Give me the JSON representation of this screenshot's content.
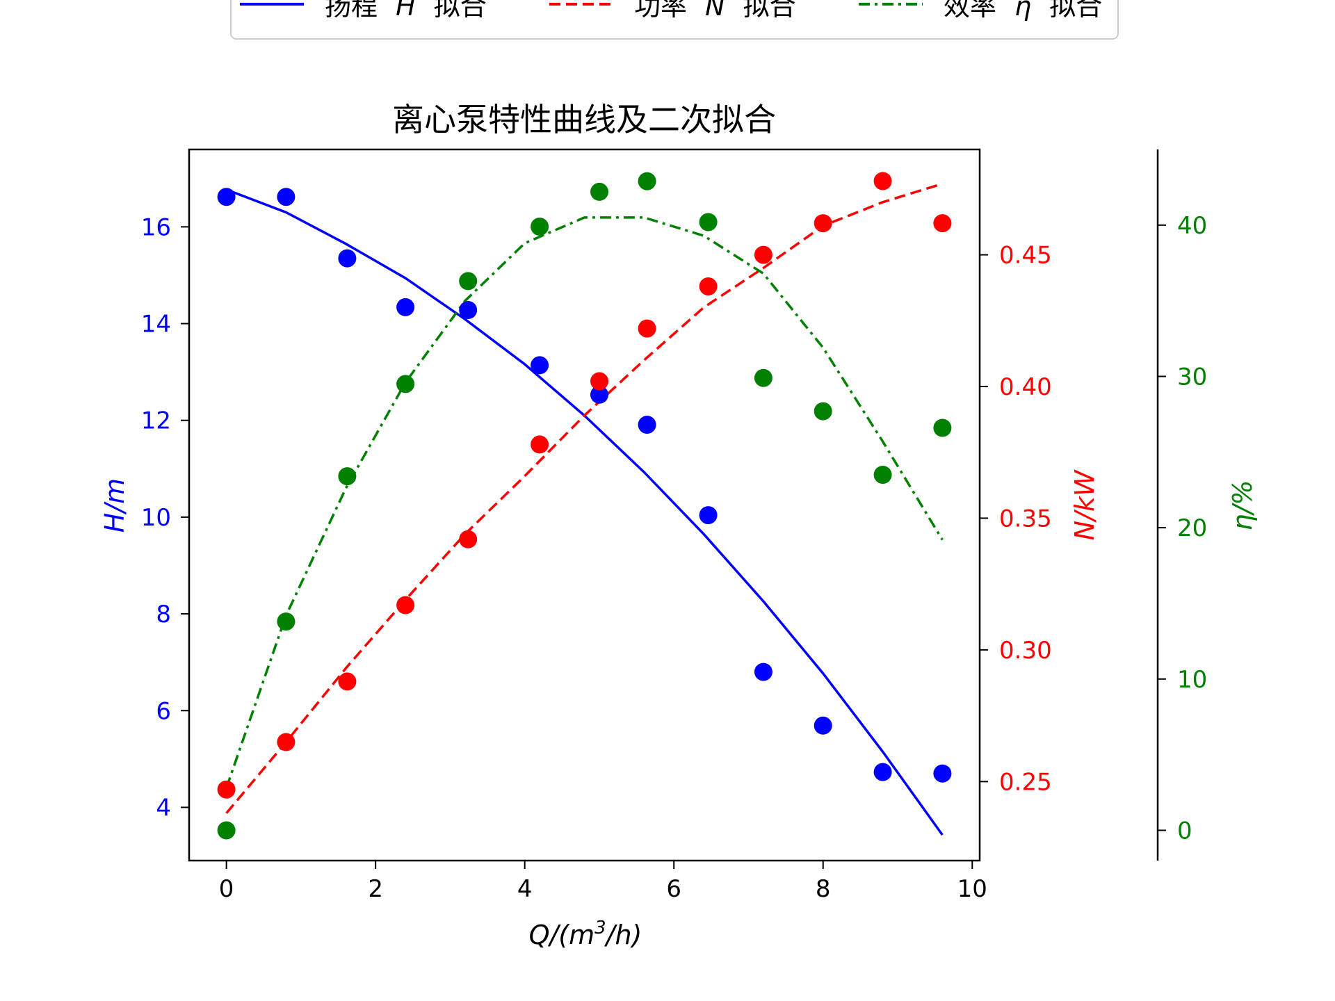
{
  "chart_data": {
    "type": "line",
    "title": "离心泵特性曲线及二次拟合",
    "xlabel": "Q/(m³/h)",
    "xlim": [
      -0.5,
      10.1
    ],
    "xticks": [
      0,
      2,
      4,
      6,
      8,
      10
    ],
    "axes": {
      "H": {
        "label": "H/m",
        "color": "#0000ff",
        "ylim": [
          2.9,
          17.6
        ],
        "ticks": [
          4,
          6,
          8,
          10,
          12,
          14,
          16
        ]
      },
      "N": {
        "label": "N/kW",
        "color": "#ff0000",
        "ylim": [
          0.22,
          0.49
        ],
        "ticks": [
          0.25,
          0.3,
          0.35,
          0.4,
          0.45
        ],
        "tick_labels": [
          "0.25",
          "0.30",
          "0.35",
          "0.40",
          "0.45"
        ]
      },
      "eta": {
        "label": "η/%",
        "color": "#008000",
        "ylim": [
          -2,
          45
        ],
        "ticks": [
          0,
          10,
          20,
          30,
          40
        ]
      }
    },
    "x": [
      0.0,
      0.8,
      1.62,
      2.4,
      3.24,
      4.2,
      5.0,
      5.64,
      6.46,
      7.2,
      8.0,
      8.8,
      9.6
    ],
    "series": [
      {
        "key": "H",
        "name": "扬程 H 拟合",
        "name_parts": [
          "扬程",
          "H",
          "拟合"
        ],
        "axis": "H",
        "color": "#0000ff",
        "dash": "solid",
        "points": [
          16.62,
          16.62,
          15.35,
          14.34,
          14.28,
          13.14,
          12.53,
          11.91,
          10.04,
          6.8,
          5.69,
          4.73,
          4.7
        ],
        "fit_x": [
          0.0,
          0.8,
          1.6,
          2.4,
          3.2,
          4.0,
          4.8,
          5.6,
          6.4,
          7.2,
          8.0,
          8.8,
          9.6
        ],
        "fit": [
          16.77,
          16.3,
          15.65,
          14.94,
          14.09,
          13.16,
          12.1,
          10.93,
          9.65,
          8.26,
          6.77,
          5.15,
          3.43
        ]
      },
      {
        "key": "N",
        "name": "功率 N 拟合",
        "name_parts": [
          "功率",
          "N",
          "拟合"
        ],
        "axis": "N",
        "color": "#ff0000",
        "dash": "dashed",
        "points": [
          0.247,
          0.265,
          0.288,
          0.317,
          0.342,
          0.378,
          0.402,
          0.422,
          0.438,
          0.45,
          0.462,
          0.478,
          0.462
        ],
        "fit_x": [
          0.0,
          0.8,
          1.6,
          2.4,
          3.2,
          4.0,
          4.8,
          5.6,
          6.4,
          7.2,
          8.0,
          8.8,
          9.6
        ],
        "fit": [
          0.238,
          0.265,
          0.293,
          0.319,
          0.344,
          0.366,
          0.389,
          0.41,
          0.43,
          0.445,
          0.461,
          0.47,
          0.477
        ]
      },
      {
        "key": "eta",
        "name": "效率 η 拟合",
        "name_parts": [
          "效率",
          "η",
          "拟合"
        ],
        "axis": "eta",
        "color": "#008000",
        "dash": "dashdot",
        "points": [
          0.0,
          13.8,
          23.4,
          29.5,
          36.3,
          39.9,
          42.2,
          42.9,
          40.2,
          29.9,
          27.7,
          23.5,
          26.6
        ],
        "fit_x": [
          0.0,
          0.8,
          1.6,
          2.4,
          3.2,
          4.0,
          4.8,
          5.6,
          6.4,
          7.2,
          8.0,
          8.8,
          9.6
        ],
        "fit": [
          2.8,
          14.2,
          22.6,
          29.6,
          35.0,
          38.8,
          40.5,
          40.5,
          39.3,
          36.8,
          31.9,
          25.7,
          19.2
        ]
      }
    ],
    "grid": false,
    "legend": "top-center"
  }
}
